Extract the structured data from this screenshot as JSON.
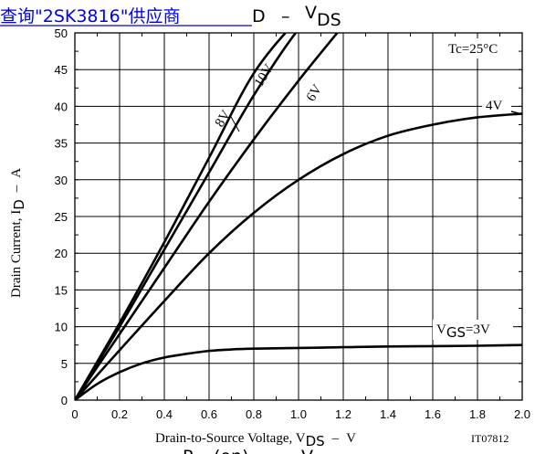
{
  "header": {
    "link_text": "查询\"2SK3816\"供应商",
    "title_prefix": "D",
    "title_dash": "–",
    "title_v": "V",
    "title_v_sub": "DS"
  },
  "footer": {
    "text_a": "R",
    "text_b": "(on)",
    "text_c": "–",
    "text_d": "V"
  },
  "chart_data": {
    "type": "line",
    "xlim": [
      0,
      2.0
    ],
    "ylim": [
      0,
      50
    ],
    "x_ticks": [
      "0",
      "0.2",
      "0.4",
      "0.6",
      "0.8",
      "1.0",
      "1.2",
      "1.4",
      "1.6",
      "1.8",
      "2.0"
    ],
    "y_ticks": [
      "0",
      "5",
      "10",
      "15",
      "20",
      "25",
      "30",
      "35",
      "40",
      "45",
      "50"
    ],
    "x_tick_values": [
      0,
      0.2,
      0.4,
      0.6,
      0.8,
      1.0,
      1.2,
      1.4,
      1.6,
      1.8,
      2.0
    ],
    "y_tick_values": [
      0,
      5,
      10,
      15,
      20,
      25,
      30,
      35,
      40,
      45,
      50
    ],
    "grid": true,
    "xlabel": {
      "main": "Drain-to-Source Voltage, V",
      "sub": "DS",
      "dash": "–",
      "unit": "V"
    },
    "ylabel": {
      "main": "Drain Current, I",
      "sub": "D",
      "dash": "–",
      "unit": "A"
    },
    "condition": "Tc=25°C",
    "figure_code": "IT07812",
    "series": [
      {
        "name": "10V",
        "x": [
          0,
          0.2,
          0.4,
          0.6,
          0.8,
          1.0,
          1.1
        ],
        "y": [
          0,
          10.5,
          21.5,
          33.0,
          44.5,
          52.0,
          55.0
        ]
      },
      {
        "name": "8V",
        "x": [
          0,
          0.2,
          0.4,
          0.6,
          0.8,
          1.0,
          1.1
        ],
        "y": [
          0,
          10.0,
          20.5,
          31.0,
          41.5,
          50.5,
          53.0
        ]
      },
      {
        "name": "6V",
        "x": [
          0,
          0.2,
          0.4,
          0.6,
          0.8,
          1.0,
          1.2
        ],
        "y": [
          0,
          9.0,
          18.0,
          27.0,
          35.5,
          43.5,
          51.0
        ]
      },
      {
        "name": "4V",
        "x": [
          0,
          0.2,
          0.4,
          0.6,
          0.8,
          1.0,
          1.2,
          1.4,
          1.6,
          1.8,
          2.0
        ],
        "y": [
          0,
          6.8,
          13.5,
          20.0,
          25.5,
          30.0,
          33.5,
          36.0,
          37.5,
          38.5,
          39.0
        ]
      },
      {
        "name": "VGS=3V",
        "x": [
          0,
          0.1,
          0.2,
          0.3,
          0.4,
          0.5,
          0.6,
          0.7,
          0.8,
          1.0,
          1.2,
          1.4,
          1.6,
          1.8,
          2.0
        ],
        "y": [
          0,
          2.2,
          3.8,
          5.0,
          5.8,
          6.3,
          6.7,
          6.9,
          7.0,
          7.1,
          7.2,
          7.3,
          7.35,
          7.4,
          7.5
        ]
      }
    ],
    "labels": {
      "v10": "10V",
      "v8": "8V",
      "v6": "6V",
      "v4": "4V",
      "v3_prefix": "V",
      "v3_sub": "GS",
      "v3_suffix": "=3V"
    }
  }
}
